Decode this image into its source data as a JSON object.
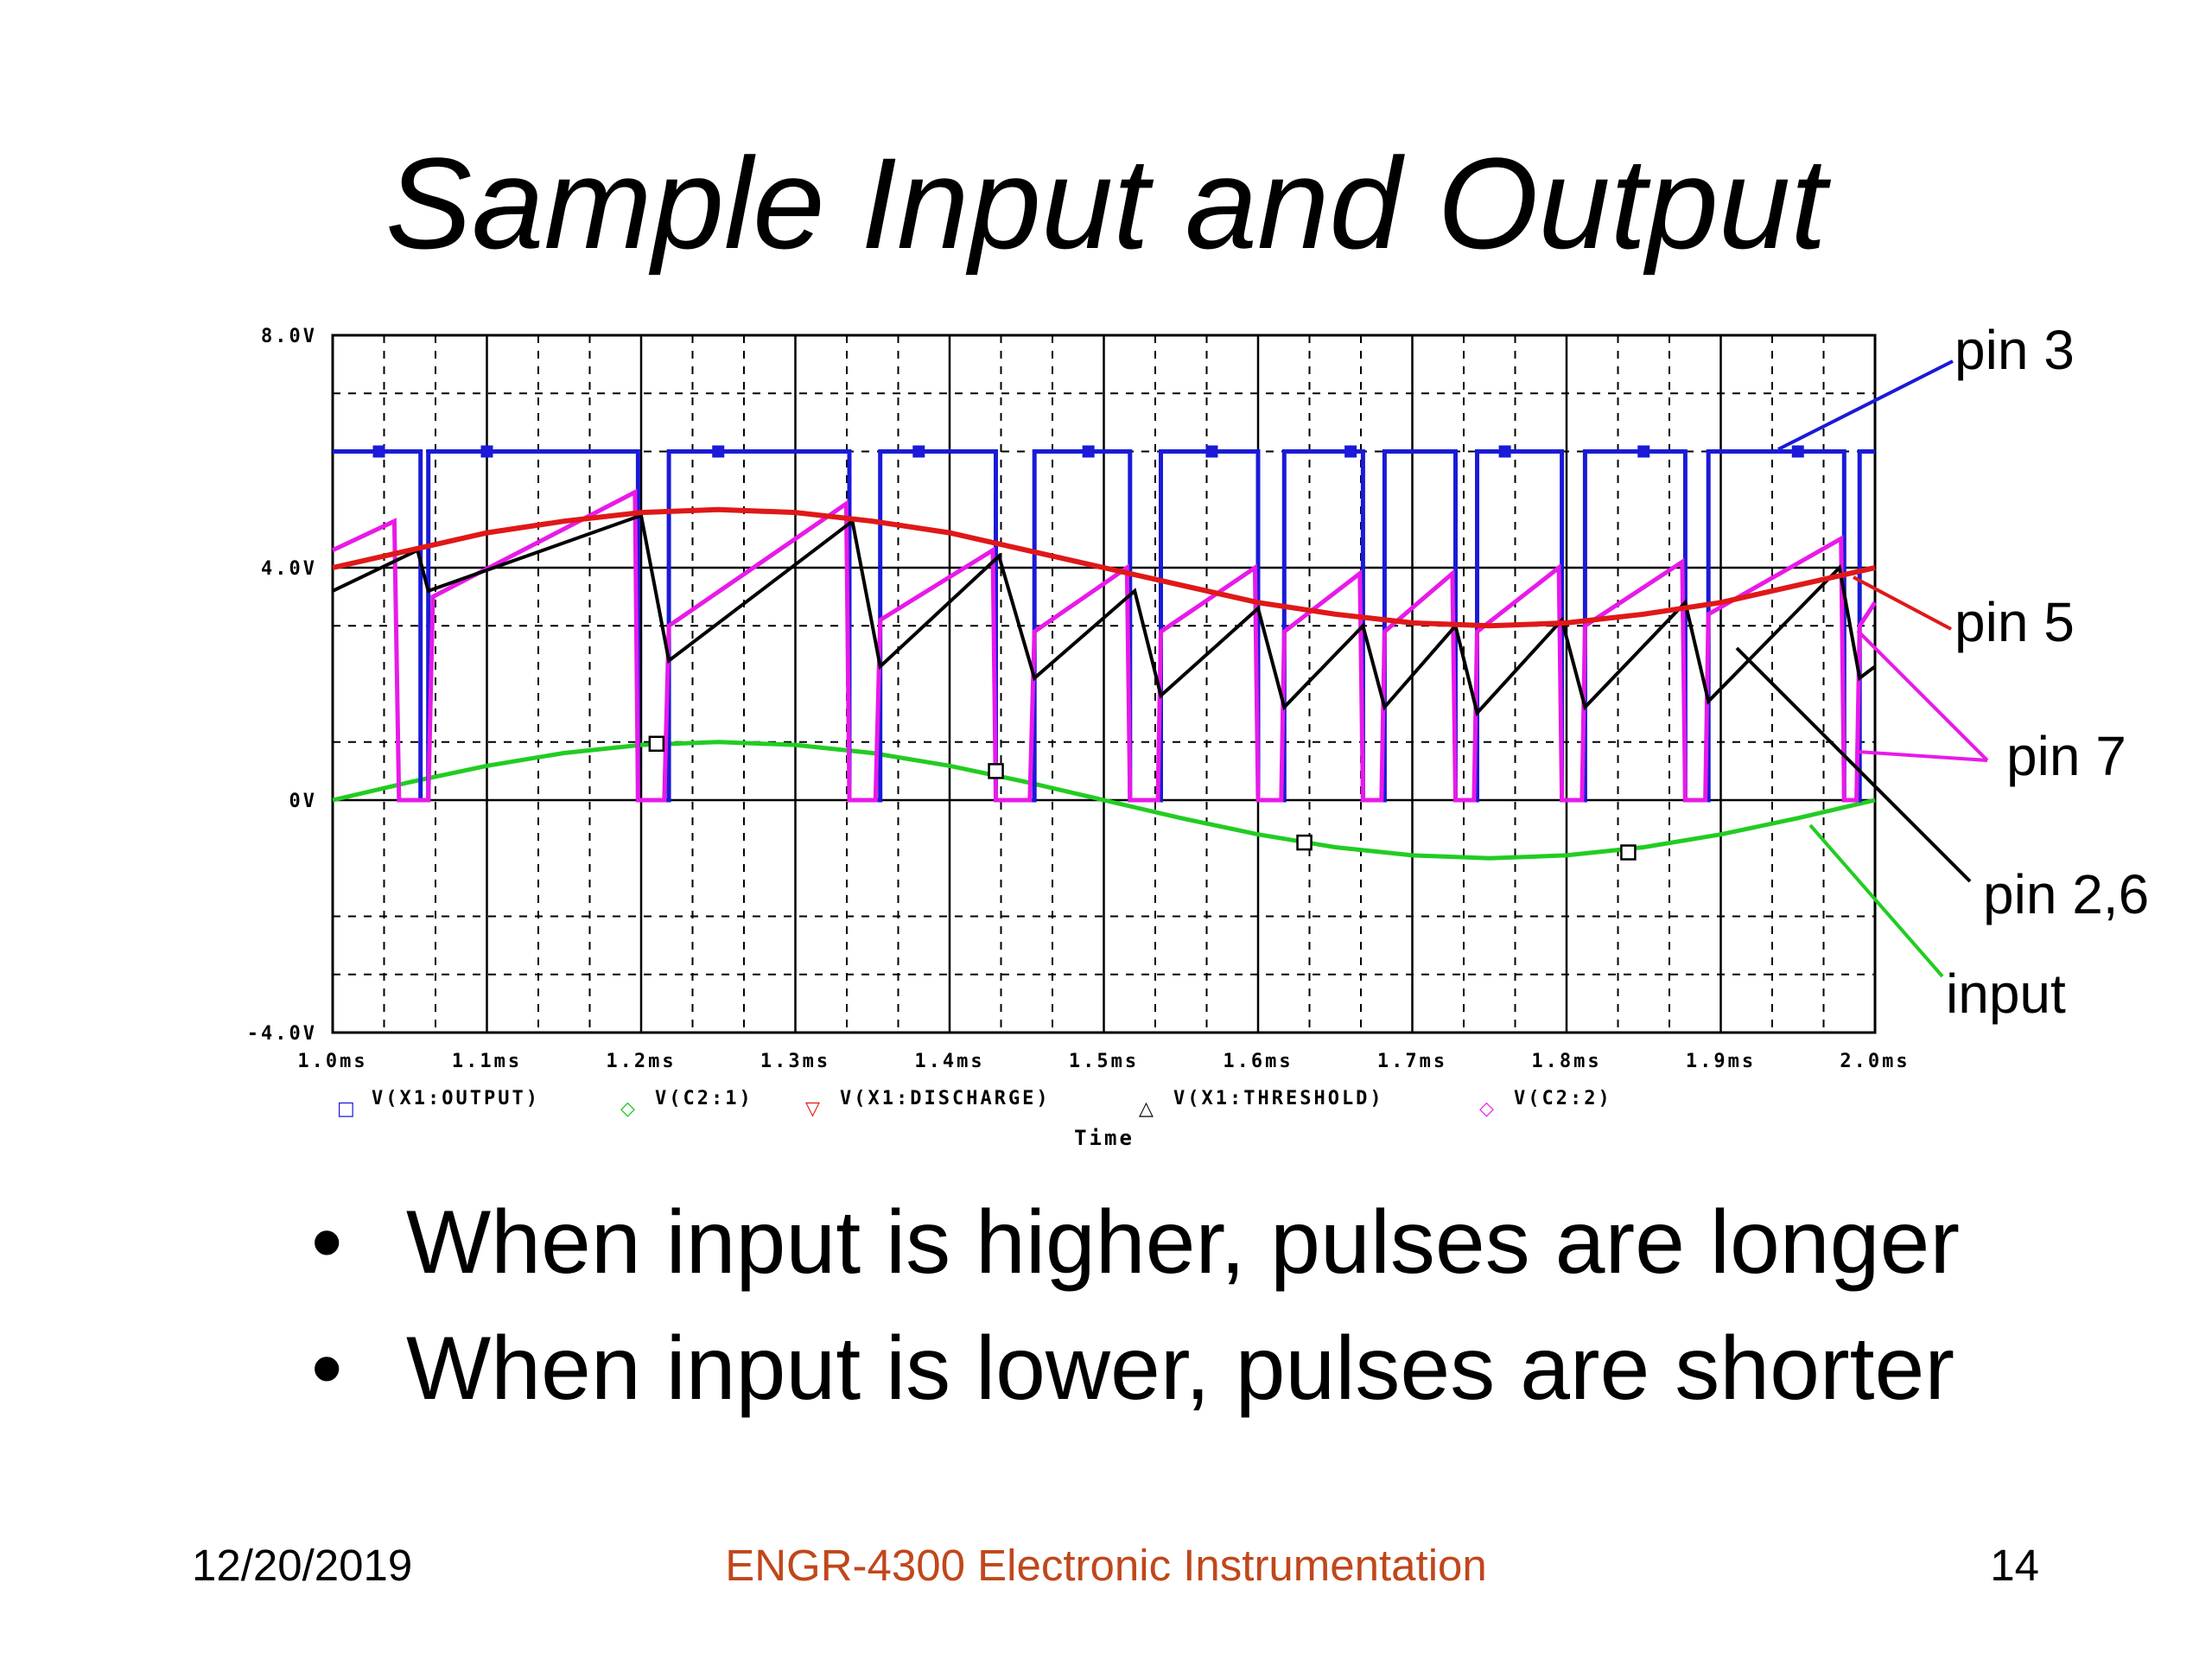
{
  "slide": {
    "title": "Sample Input and Output",
    "bullets": [
      "When input is higher, pulses are longer",
      "When input is lower, pulses are shorter"
    ],
    "footer": {
      "date": "12/20/2019",
      "course": "ENGR-4300  Electronic Instrumentation",
      "page": "14"
    }
  },
  "chart_data": {
    "type": "line",
    "xlabel": "Time",
    "ylabel": "",
    "xlim": [
      1.0,
      2.0
    ],
    "ylim": [
      -4.0,
      8.0
    ],
    "grid": true,
    "x_ticks": [
      "1.0ms",
      "1.1ms",
      "1.2ms",
      "1.3ms",
      "1.4ms",
      "1.5ms",
      "1.6ms",
      "1.7ms",
      "1.8ms",
      "1.9ms",
      "2.0ms"
    ],
    "y_ticks": [
      {
        "value": 8.0,
        "label": "8.0V"
      },
      {
        "value": 4.0,
        "label": "4.0V"
      },
      {
        "value": 0.0,
        "label": "0V"
      },
      {
        "value": -4.0,
        "label": "-4.0V"
      }
    ],
    "legend_position": "bottom",
    "legend": [
      {
        "symbol": "□",
        "label": "V(X1:OUTPUT)",
        "color": "#1a1ad8"
      },
      {
        "symbol": "◇",
        "label": "V(C2:1)",
        "color": "#10c010"
      },
      {
        "symbol": "▽",
        "label": "V(X1:DISCHARGE)",
        "color": "#e01818"
      },
      {
        "symbol": "△",
        "label": "V(X1:THRESHOLD)",
        "color": "#000000"
      },
      {
        "symbol": "◇",
        "label": "V(C2:2)",
        "color": "#e81ae8"
      }
    ],
    "annotations": [
      {
        "text": "pin 3",
        "color": "#1a1ad8"
      },
      {
        "text": "pin 5",
        "color": "#e01818"
      },
      {
        "text": "pin 7",
        "color": "#e81ae8"
      },
      {
        "text": "pin 2,6",
        "color": "#000000"
      },
      {
        "text": "input",
        "color": "#22cc22"
      }
    ],
    "series": [
      {
        "name": "V(X1:OUTPUT)",
        "color": "#1a1ad8",
        "high": 6.0,
        "low": 0.0,
        "low_intervals": [
          [
            1.057,
            1.062
          ],
          [
            1.198,
            1.218
          ],
          [
            1.335,
            1.355
          ],
          [
            1.43,
            1.455
          ],
          [
            1.517,
            1.537
          ],
          [
            1.6,
            1.617
          ],
          [
            1.668,
            1.682
          ],
          [
            1.728,
            1.742
          ],
          [
            1.797,
            1.812
          ],
          [
            1.877,
            1.892
          ],
          [
            1.98,
            1.99
          ]
        ]
      },
      {
        "name": "V(C2:1)",
        "color": "#22cc22",
        "x": [
          1.0,
          1.05,
          1.1,
          1.15,
          1.2,
          1.25,
          1.3,
          1.35,
          1.4,
          1.45,
          1.5,
          1.55,
          1.6,
          1.65,
          1.7,
          1.75,
          1.8,
          1.85,
          1.9,
          1.95,
          2.0
        ],
        "y": [
          0.0,
          0.31,
          0.59,
          0.81,
          0.95,
          1.0,
          0.95,
          0.81,
          0.59,
          0.31,
          0.0,
          -0.31,
          -0.59,
          -0.81,
          -0.95,
          -1.0,
          -0.95,
          -0.81,
          -0.59,
          -0.31,
          0.0
        ]
      },
      {
        "name": "V(X1:DISCHARGE)",
        "color": "#e01818",
        "x": [
          1.0,
          1.05,
          1.1,
          1.15,
          1.2,
          1.25,
          1.3,
          1.35,
          1.4,
          1.45,
          1.5,
          1.55,
          1.6,
          1.65,
          1.7,
          1.75,
          1.8,
          1.85,
          1.9,
          1.95,
          2.0
        ],
        "y": [
          4.0,
          4.3,
          4.6,
          4.8,
          4.95,
          5.0,
          4.95,
          4.8,
          4.6,
          4.3,
          4.0,
          3.7,
          3.4,
          3.2,
          3.05,
          3.0,
          3.05,
          3.2,
          3.4,
          3.7,
          4.0
        ]
      },
      {
        "name": "V(X1:THRESHOLD)",
        "color": "#000000",
        "x": [
          1.0,
          1.055,
          1.062,
          1.2,
          1.218,
          1.337,
          1.355,
          1.432,
          1.455,
          1.52,
          1.537,
          1.6,
          1.617,
          1.668,
          1.682,
          1.728,
          1.742,
          1.797,
          1.812,
          1.877,
          1.892,
          1.977,
          1.99,
          2.0
        ],
        "y": [
          3.6,
          4.3,
          3.6,
          4.9,
          2.4,
          4.8,
          2.3,
          4.2,
          2.1,
          3.6,
          1.8,
          3.3,
          1.6,
          3.0,
          1.6,
          3.0,
          1.5,
          3.1,
          1.6,
          3.4,
          1.7,
          4.0,
          2.1,
          2.3
        ]
      },
      {
        "name": "V(C2:2)",
        "color": "#e81ae8",
        "x": [
          1.0,
          1.04,
          1.043,
          1.056,
          1.06,
          1.062,
          1.065,
          1.196,
          1.198,
          1.215,
          1.218,
          1.333,
          1.335,
          1.352,
          1.355,
          1.428,
          1.43,
          1.452,
          1.455,
          1.515,
          1.517,
          1.535,
          1.537,
          1.598,
          1.6,
          1.615,
          1.617,
          1.666,
          1.668,
          1.68,
          1.682,
          1.726,
          1.728,
          1.74,
          1.742,
          1.795,
          1.797,
          1.81,
          1.812,
          1.875,
          1.877,
          1.89,
          1.892,
          1.978,
          1.98,
          1.988,
          1.99,
          2.0
        ],
        "y": [
          4.3,
          4.8,
          0.0,
          0.0,
          0.0,
          0.0,
          3.5,
          5.3,
          0.0,
          0.0,
          3.0,
          5.1,
          0.0,
          0.0,
          3.1,
          4.3,
          0.0,
          0.0,
          2.9,
          4.0,
          0.0,
          0.0,
          2.9,
          4.0,
          0.0,
          0.0,
          2.9,
          3.9,
          0.0,
          0.0,
          2.9,
          3.9,
          0.0,
          0.0,
          2.9,
          4.0,
          0.0,
          0.0,
          3.0,
          4.1,
          0.0,
          0.0,
          3.2,
          4.5,
          0.0,
          0.0,
          3.0,
          3.4
        ]
      }
    ]
  }
}
